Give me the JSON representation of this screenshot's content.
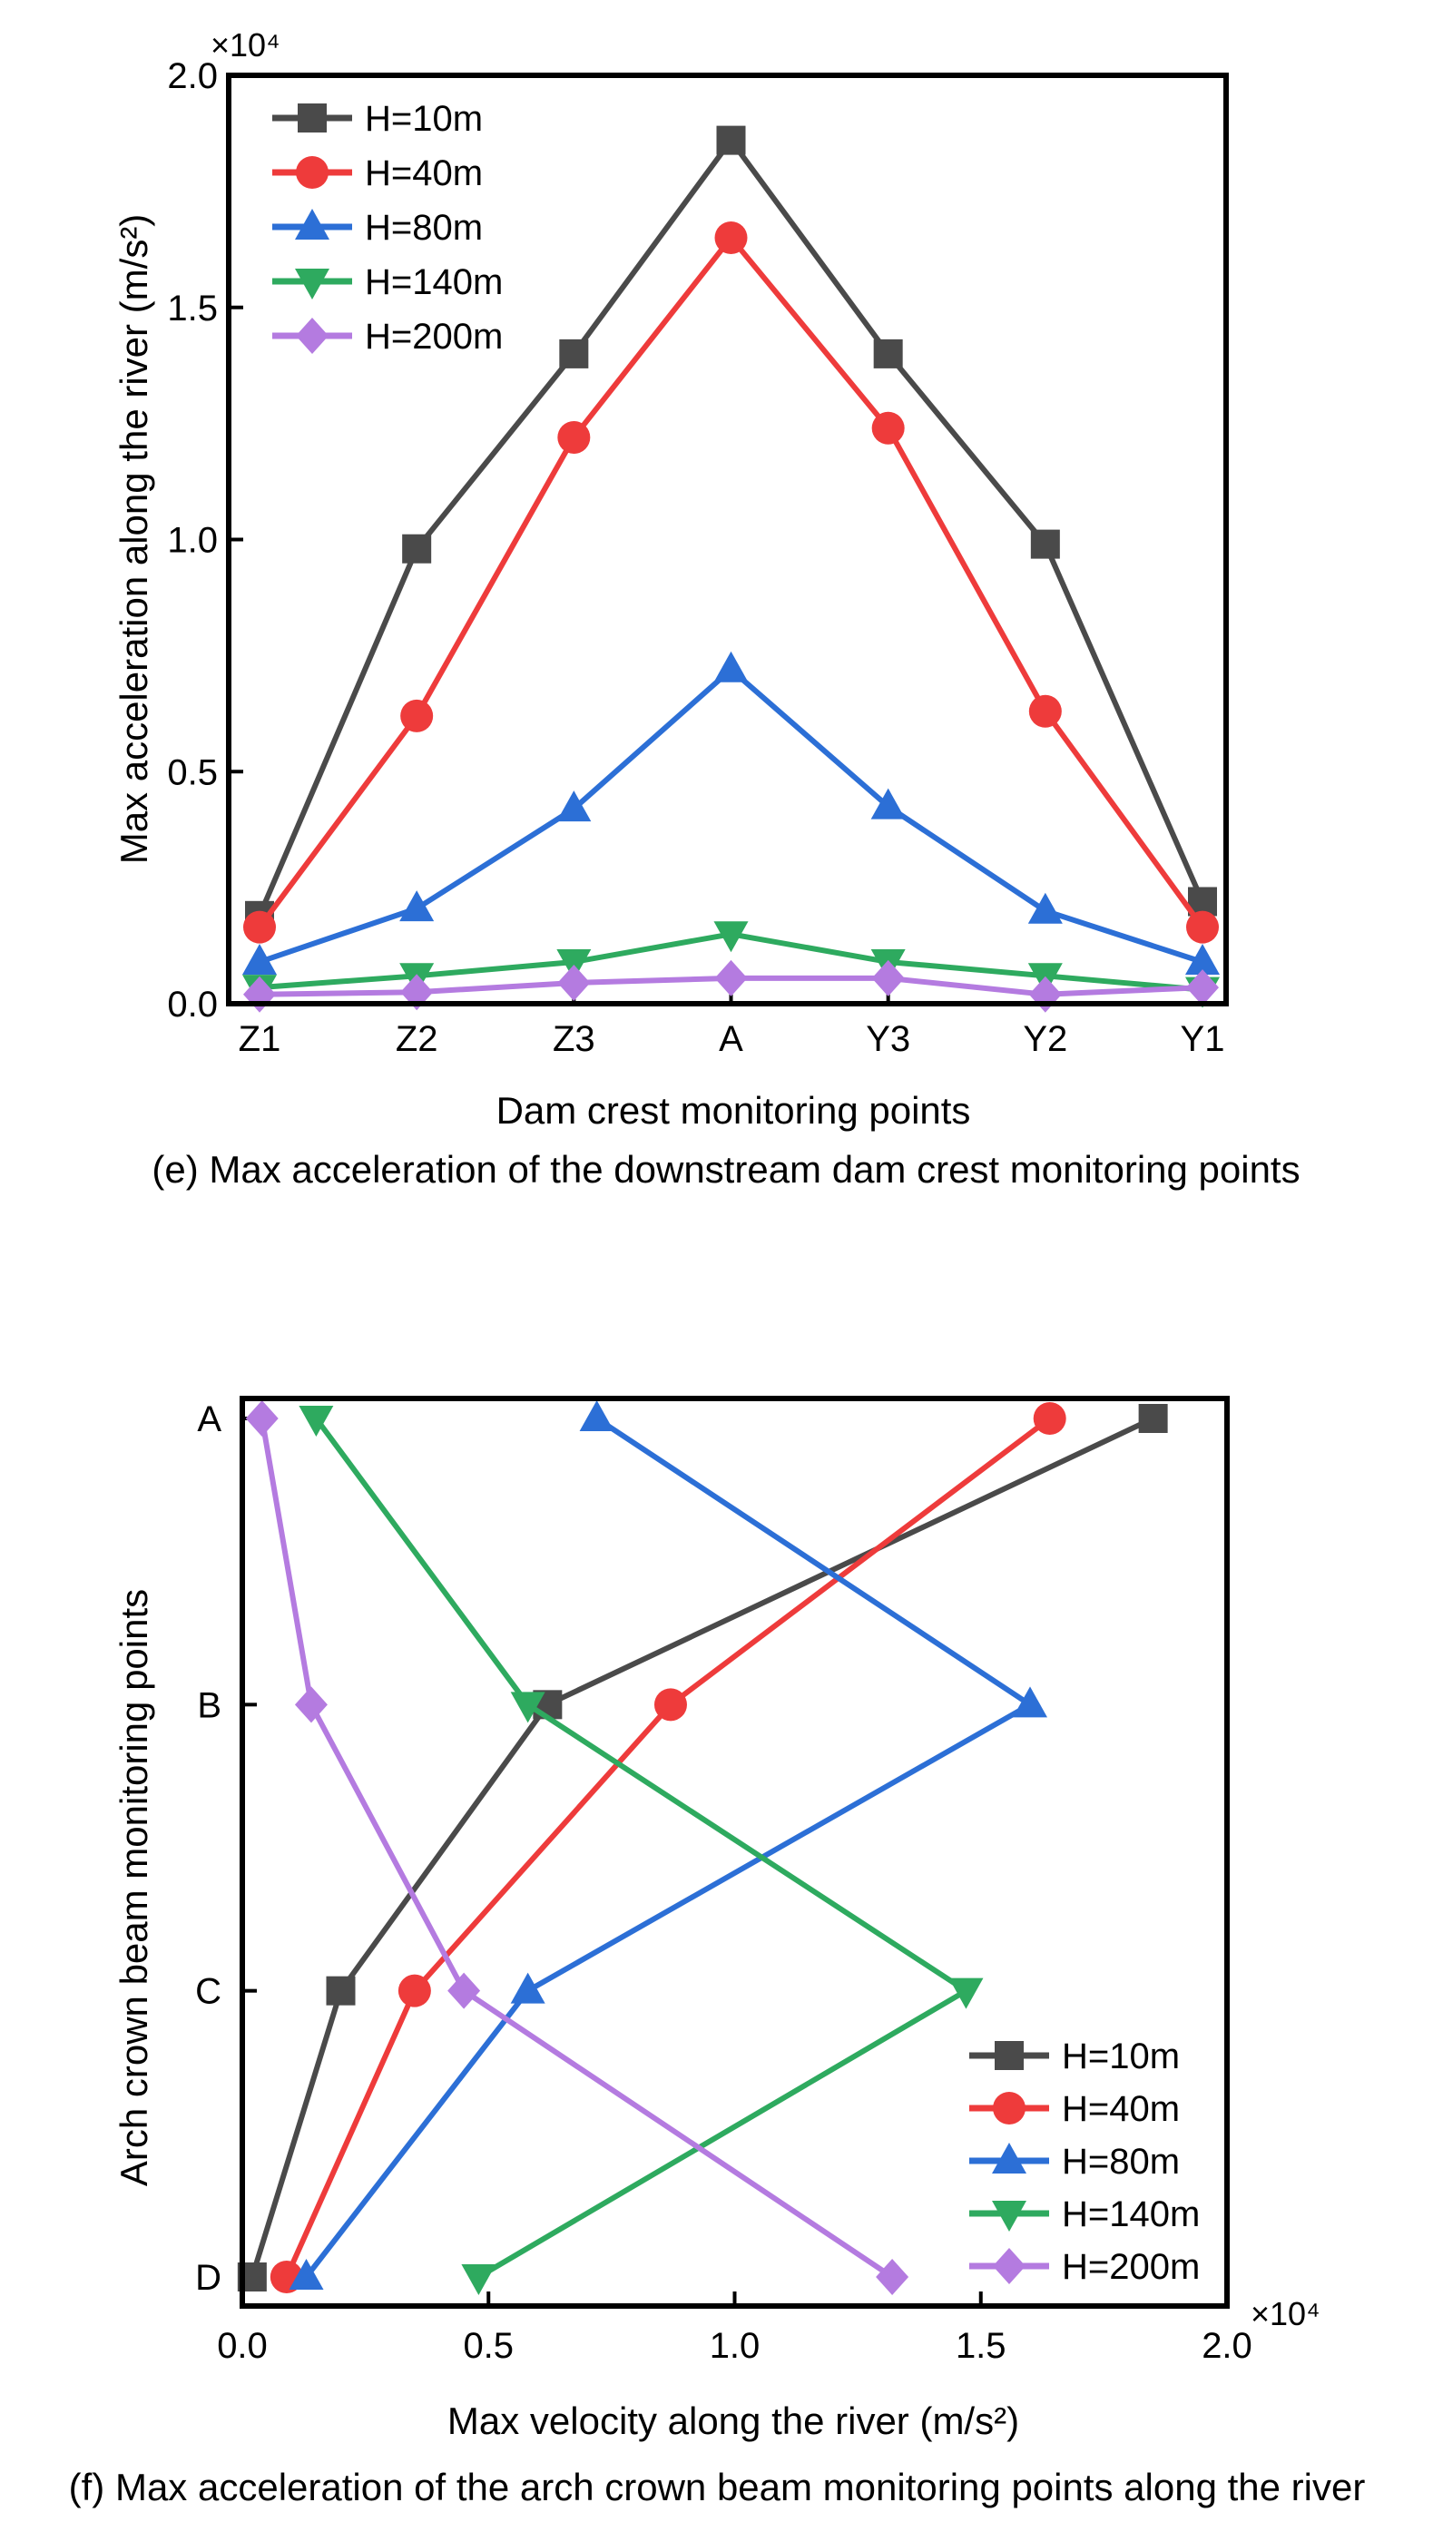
{
  "colors": {
    "H=10m": "#4a4a4a",
    "H=40m": "#ee3b3b",
    "H=80m": "#2c6fd6",
    "H=140m": "#2eaa5f",
    "H=200m": "#b47be0"
  },
  "chart_data": [
    {
      "type": "line",
      "orientation": "vertical",
      "caption": "(e) Max acceleration of the downstream dam crest  monitoring points",
      "xlabel": "Dam crest monitoring points",
      "ylabel": "Max acceleration along the river (m/s²)",
      "ylim": [
        0,
        20000
      ],
      "y_scale_label": "×10⁴",
      "y_ticks": [
        0,
        5000,
        10000,
        15000,
        20000
      ],
      "y_tick_labels": [
        "0.0",
        "0.5",
        "1.0",
        "1.5",
        "2.0"
      ],
      "categories": [
        "Z1",
        "Z2",
        "Z3",
        "A",
        "Y3",
        "Y2",
        "Y1"
      ],
      "legend_position": "top-left",
      "series": [
        {
          "name": "H=10m",
          "marker": "square",
          "values": [
            1900,
            9800,
            14000,
            18600,
            14000,
            9900,
            2200
          ]
        },
        {
          "name": "H=40m",
          "marker": "circle",
          "values": [
            1650,
            6200,
            12200,
            16500,
            12400,
            6300,
            1650
          ]
        },
        {
          "name": "H=80m",
          "marker": "triangle-up",
          "values": [
            900,
            2050,
            4200,
            7200,
            4250,
            2000,
            900
          ]
        },
        {
          "name": "H=140m",
          "marker": "triangle-down",
          "values": [
            350,
            600,
            900,
            1500,
            900,
            600,
            300
          ]
        },
        {
          "name": "H=200m",
          "marker": "diamond",
          "values": [
            200,
            250,
            450,
            550,
            550,
            200,
            350
          ]
        }
      ]
    },
    {
      "type": "line",
      "orientation": "horizontal",
      "caption": "(f) Max acceleration of the arch crown beam monitoring points along the river",
      "xlabel": "Max velocity along the river (m/s²)",
      "ylabel": "Arch crown beam monitoring points",
      "xlim": [
        0,
        20000
      ],
      "x_scale_label": "×10⁴",
      "x_ticks": [
        0,
        5000,
        10000,
        15000,
        20000
      ],
      "x_tick_labels": [
        "0.0",
        "0.5",
        "1.0",
        "1.5",
        "2.0"
      ],
      "categories": [
        "A",
        "B",
        "C",
        "D"
      ],
      "legend_position": "bottom-right",
      "series": [
        {
          "name": "H=10m",
          "marker": "square",
          "values": [
            18500,
            6200,
            2000,
            200
          ]
        },
        {
          "name": "H=40m",
          "marker": "circle",
          "values": [
            16400,
            8700,
            3500,
            900
          ]
        },
        {
          "name": "H=80m",
          "marker": "triangle-up",
          "values": [
            7200,
            16000,
            5800,
            1300
          ]
        },
        {
          "name": "H=140m",
          "marker": "triangle-down",
          "values": [
            1500,
            5800,
            14700,
            4800
          ]
        },
        {
          "name": "H=200m",
          "marker": "diamond",
          "values": [
            400,
            1400,
            4500,
            13200
          ]
        }
      ]
    }
  ]
}
